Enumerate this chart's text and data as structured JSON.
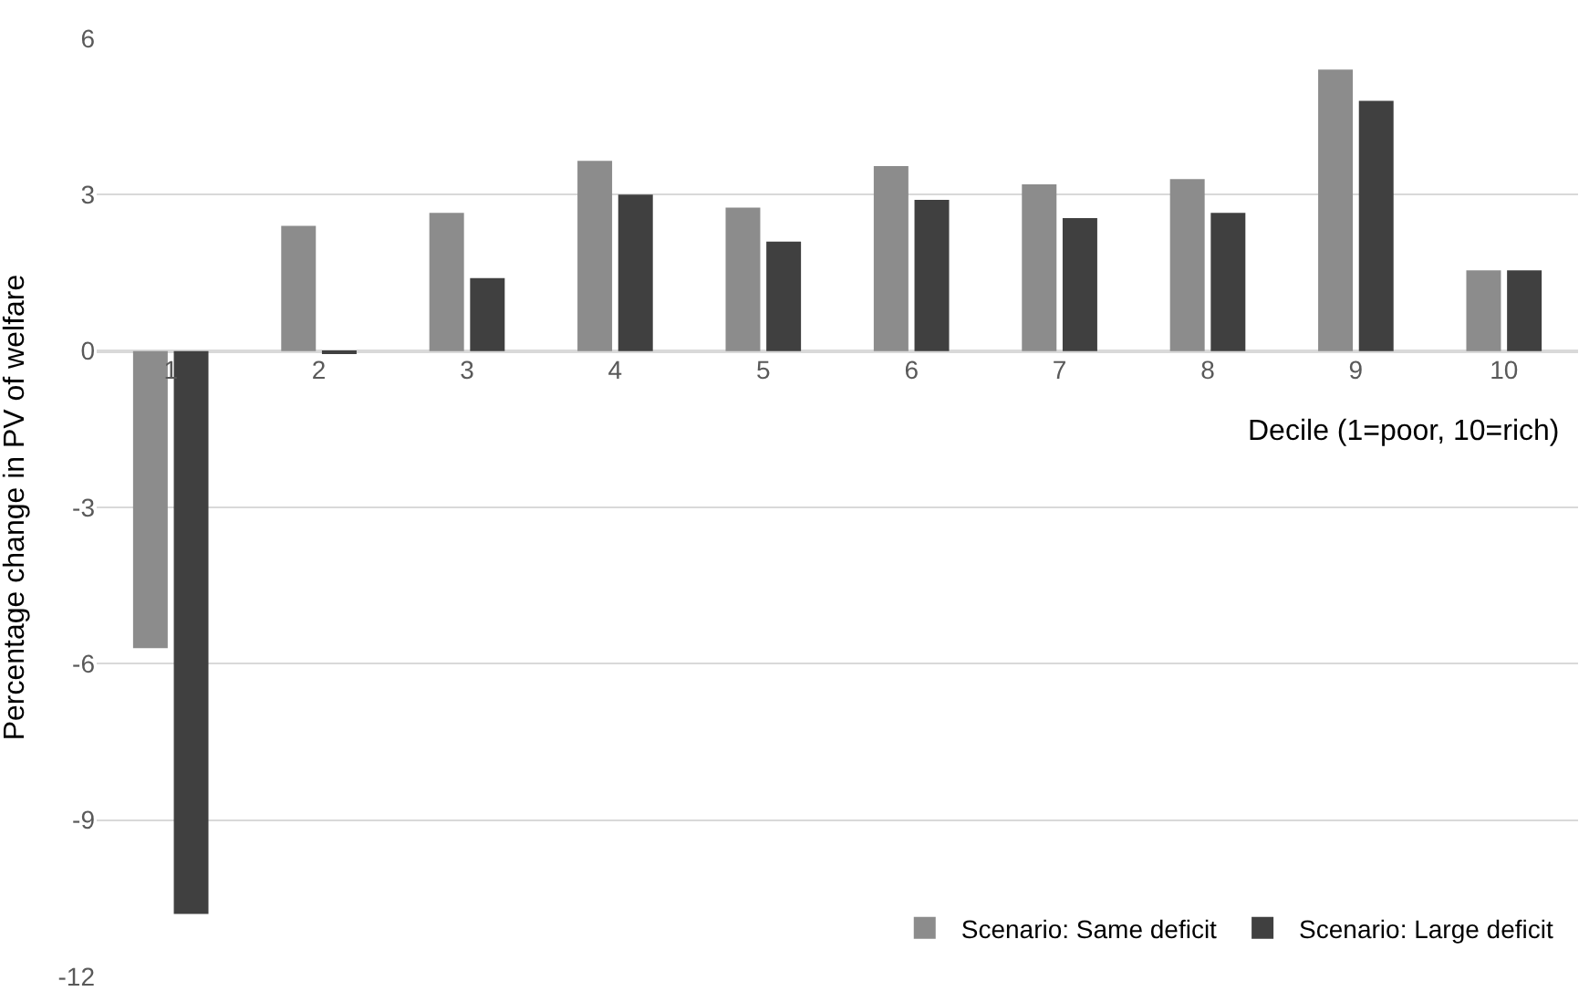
{
  "chart_data": {
    "type": "bar",
    "xlabel": "Decile (1=poor, 10=rich)",
    "ylabel": "Percentage change in PV of welfare",
    "categories": [
      "1",
      "2",
      "3",
      "4",
      "5",
      "6",
      "7",
      "8",
      "9",
      "10"
    ],
    "series": [
      {
        "name": "Scenario: Same deficit",
        "color": "#8c8c8c",
        "values": [
          -5.7,
          2.4,
          2.65,
          3.65,
          2.75,
          3.55,
          3.2,
          3.3,
          5.4,
          1.55
        ]
      },
      {
        "name": "Scenario: Large deficit",
        "color": "#404040",
        "values": [
          -10.8,
          -0.05,
          1.4,
          3.0,
          2.1,
          2.9,
          2.55,
          2.65,
          4.8,
          1.55
        ]
      }
    ],
    "ylim": [
      -12,
      6
    ],
    "yticks": [
      -12,
      -9,
      -6,
      -3,
      0,
      3,
      6
    ],
    "grid": "y",
    "legend": "bottom right"
  }
}
